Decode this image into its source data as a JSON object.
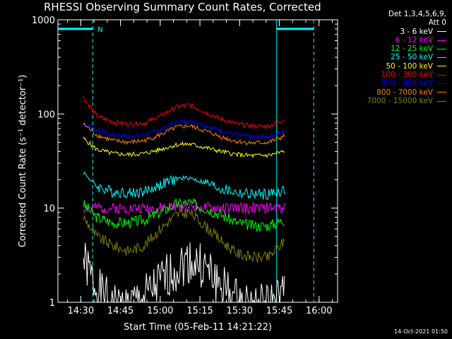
{
  "chart_data": {
    "type": "line",
    "title": "RHESSI Observing Summary Count Rates, Corrected",
    "xlabel": "Start Time (05-Feb-11 14:21:22)",
    "ylabel": "Corrected Count Rate (s⁻¹ detector⁻¹)",
    "y_scale": "log",
    "ylim": [
      1,
      1000
    ],
    "x_ticks": [
      "14:30",
      "14:45",
      "15:00",
      "15:15",
      "15:30",
      "15:45",
      "16:00"
    ],
    "y_ticks": [
      "1",
      "10",
      "100",
      "1000"
    ],
    "legend_header": [
      "Det 1,3,4,5,6,9,",
      "Att 0"
    ],
    "series": [
      {
        "name": "3 - 6 keV",
        "color": "#ffffff",
        "values": [
          2.8,
          1.4,
          0.9,
          0.9,
          1.1,
          1.6,
          2.3,
          2.8,
          2.3,
          1.5,
          1.0,
          0.9,
          0.9,
          1.2
        ]
      },
      {
        "name": "6 - 12 keV",
        "color": "#ff00ff",
        "values": [
          10,
          10,
          10,
          10,
          10,
          10,
          10.5,
          10.5,
          10,
          10,
          10,
          10,
          10,
          10
        ]
      },
      {
        "name": "12 - 25 keV",
        "color": "#00ff00",
        "values": [
          11,
          8,
          7,
          7,
          7.5,
          9,
          11,
          11.5,
          10,
          8.5,
          7,
          6.5,
          6.5,
          7.5
        ]
      },
      {
        "name": "25 - 50 keV",
        "color": "#00ffff",
        "values": [
          24,
          17,
          15,
          14.5,
          15,
          17.5,
          20.5,
          21,
          18.5,
          16,
          14.5,
          14,
          14,
          15.5
        ]
      },
      {
        "name": "50 - 100 keV",
        "color": "#ffff00",
        "values": [
          55,
          42,
          38,
          37,
          38,
          42,
          47,
          48,
          44,
          40,
          37,
          36,
          36.5,
          40
        ]
      },
      {
        "name": "100 - 300 keV",
        "color": "#ff0000",
        "values": [
          150,
          95,
          82,
          78,
          80,
          95,
          118,
          125,
          105,
          88,
          78,
          74,
          74,
          88
        ]
      },
      {
        "name": "300 - 800 keV",
        "color": "#0000ff",
        "values": [
          80,
          68,
          60,
          58,
          60,
          68,
          82,
          85,
          76,
          66,
          60,
          57,
          58,
          65
        ]
      },
      {
        "name": "800 - 7000 keV",
        "color": "#ff8000",
        "values": [
          78,
          60,
          52,
          50,
          52,
          60,
          72,
          75,
          66,
          57,
          51,
          49,
          50,
          58
        ]
      },
      {
        "name": "7000 - 15000 keV",
        "color": "#808000",
        "values": [
          8,
          5,
          4,
          3.5,
          4,
          6,
          8.5,
          9,
          6.5,
          4.5,
          3.3,
          3,
          3,
          4.5
        ]
      }
    ],
    "x": [
      "14:31",
      "14:36",
      "14:42",
      "14:48",
      "14:54",
      "15:00",
      "15:06",
      "15:11",
      "15:17",
      "15:23",
      "15:29",
      "15:35",
      "15:41",
      "15:47"
    ],
    "annotations": [
      {
        "text": "N",
        "color": "#00ffff"
      }
    ],
    "grid": false,
    "legend_position": "outside-right"
  },
  "footer": {
    "timestamp": "14-Oct-2021 01:50"
  }
}
